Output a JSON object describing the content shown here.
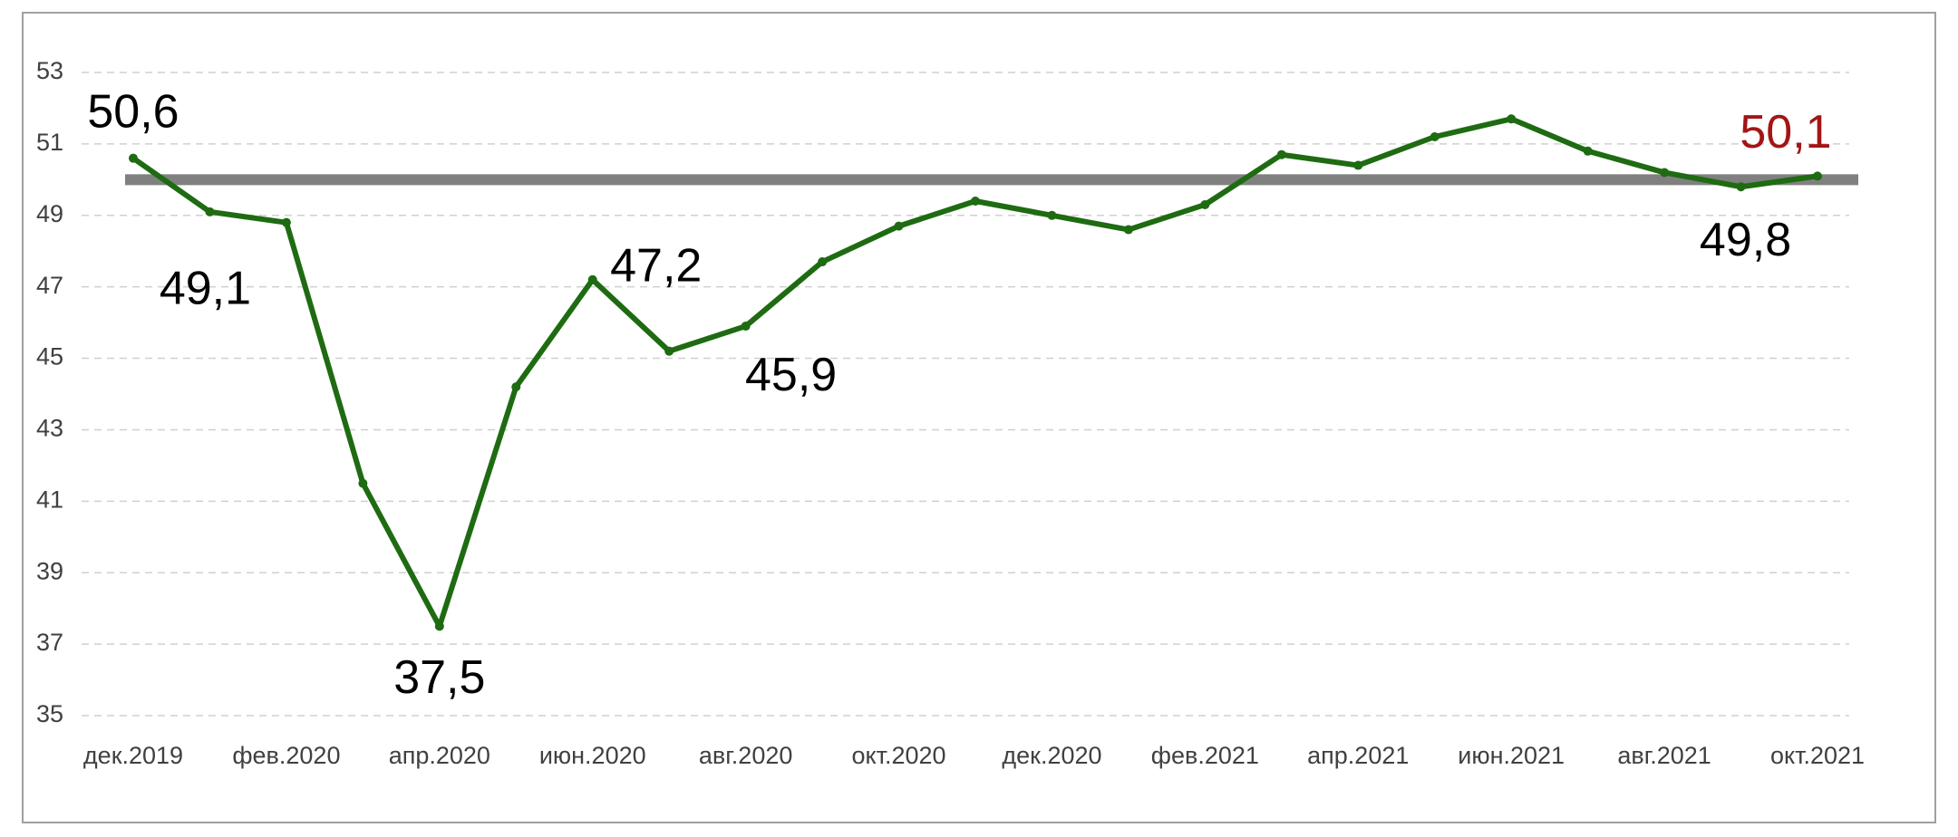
{
  "chart_data": {
    "type": "line",
    "categories": [
      "дек.2019",
      null,
      "фев.2020",
      null,
      "апр.2020",
      null,
      "июн.2020",
      null,
      "авг.2020",
      null,
      "окт.2020",
      null,
      "дек.2020",
      null,
      "фев.2021",
      null,
      "апр.2021",
      null,
      "июн.2021",
      null,
      "авг.2021",
      null,
      "окт.2021"
    ],
    "series": [
      {
        "name": null,
        "color": "#1e6b12",
        "values": [
          50.6,
          49.1,
          48.8,
          41.5,
          37.5,
          44.2,
          47.2,
          45.2,
          45.9,
          47.7,
          48.7,
          49.4,
          49.0,
          48.6,
          49.3,
          50.7,
          50.4,
          51.2,
          51.7,
          50.8,
          50.2,
          49.8,
          50.1
        ],
        "value_labels": [
          "50,6",
          "49,1",
          null,
          null,
          "37,5",
          null,
          "47,2",
          null,
          "45,9",
          null,
          null,
          null,
          null,
          null,
          null,
          null,
          null,
          null,
          null,
          null,
          null,
          "49,8",
          "50,1"
        ],
        "value_label_color": "#000000",
        "last_label_color": "#a31515"
      }
    ],
    "reference_line": {
      "value": 50,
      "color": "#808080"
    },
    "ylim": [
      35,
      53
    ],
    "yticks": [
      35,
      37,
      39,
      41,
      43,
      45,
      47,
      49,
      51,
      53
    ],
    "grid": true
  }
}
